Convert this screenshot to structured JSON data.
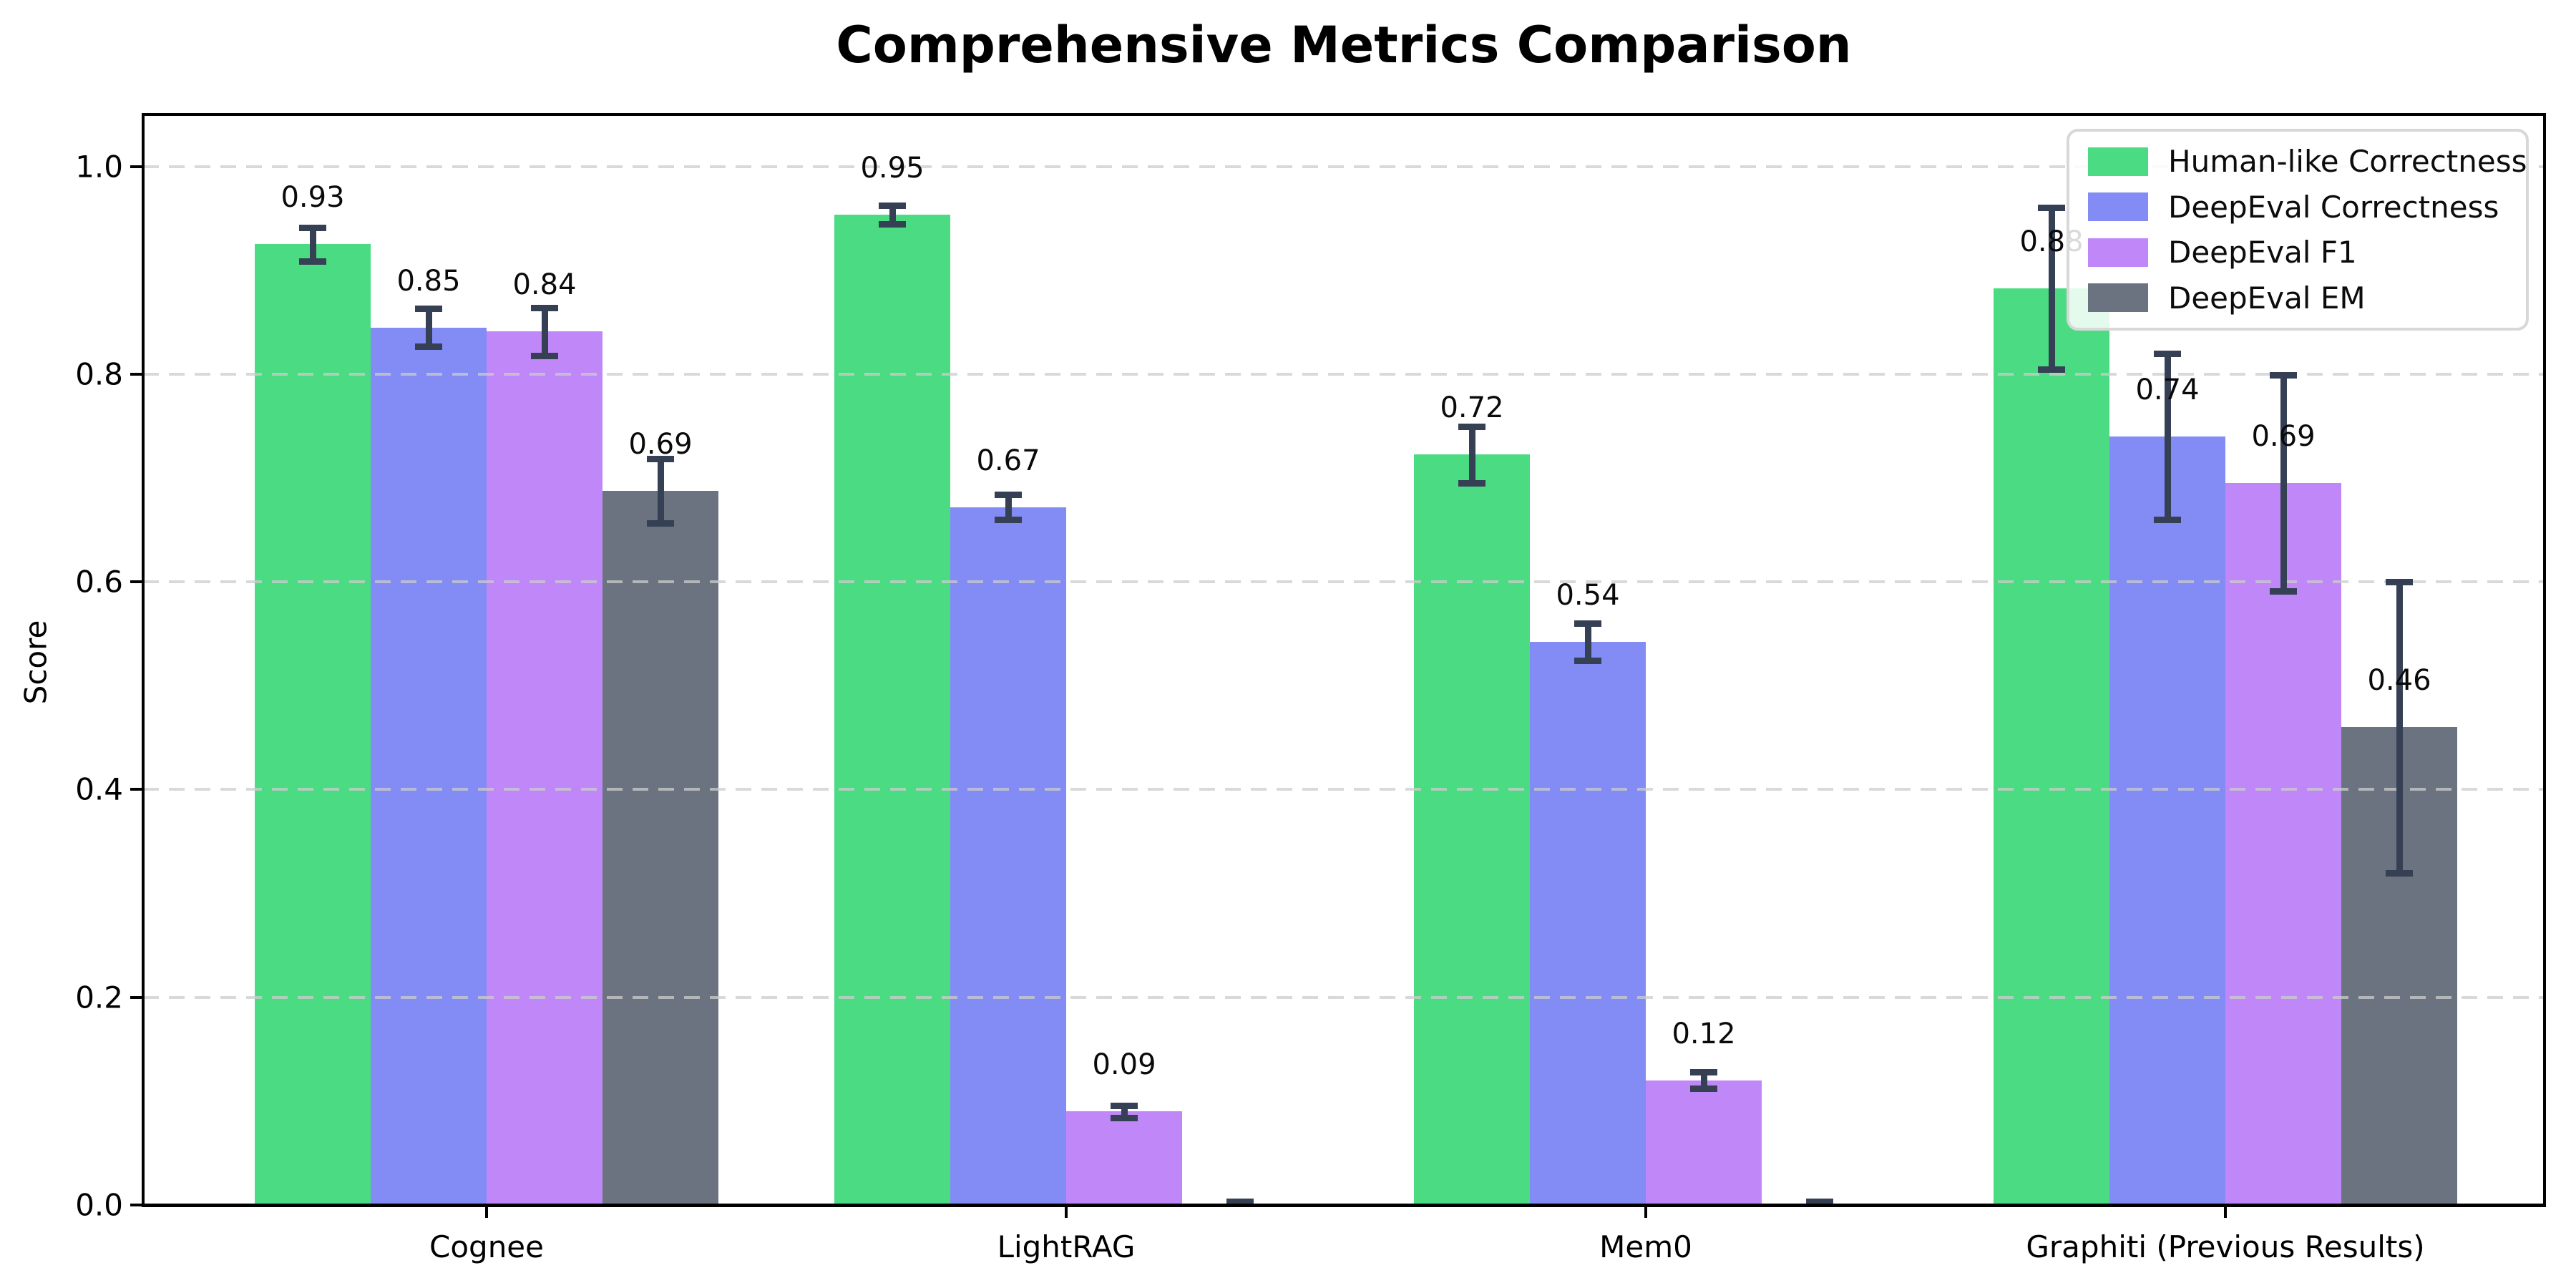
{
  "title": "Comprehensive Metrics Comparison",
  "ylabel": "Score",
  "chart_data": {
    "type": "bar",
    "categories": [
      "Cognee",
      "LightRAG",
      "Mem0",
      "Graphiti (Previous Results)"
    ],
    "series": [
      {
        "name": "Human-like Correctness",
        "color": "#4bdc83",
        "values": [
          0.925,
          0.9535,
          0.7225,
          0.8825
        ],
        "errors": [
          0.016,
          0.009,
          0.027,
          0.078
        ],
        "labels": [
          "0.93",
          "0.95",
          "0.72",
          "0.88"
        ]
      },
      {
        "name": "DeepEval Correctness",
        "color": "#828cf4",
        "values": [
          0.845,
          0.672,
          0.542,
          0.74
        ],
        "errors": [
          0.018,
          0.012,
          0.018,
          0.08
        ],
        "labels": [
          "0.85",
          "0.67",
          "0.54",
          "0.74"
        ]
      },
      {
        "name": "DeepEval F1",
        "color": "#bf87f7",
        "values": [
          0.841,
          0.09,
          0.12,
          0.695
        ],
        "errors": [
          0.023,
          0.006,
          0.008,
          0.104
        ],
        "labels": [
          "0.84",
          "0.09",
          "0.12",
          "0.69"
        ]
      },
      {
        "name": "DeepEval EM",
        "color": "#6b7380",
        "values": [
          0.6875,
          0.0015,
          0.0015,
          0.46
        ],
        "errors": [
          0.031,
          0.002,
          0.002,
          0.14
        ],
        "labels": [
          "0.69",
          "",
          "",
          "0.46"
        ]
      }
    ],
    "yticks": [
      {
        "value": 0.0,
        "label": "0.0"
      },
      {
        "value": 0.2,
        "label": "0.2"
      },
      {
        "value": 0.4,
        "label": "0.4"
      },
      {
        "value": 0.6,
        "label": "0.6"
      },
      {
        "value": 0.8,
        "label": "0.8"
      },
      {
        "value": 1.0,
        "label": "1.0"
      }
    ],
    "ylim": [
      0,
      1.05
    ],
    "grid": true,
    "legend_position": "upper right",
    "error_bar_color": "#354055",
    "grid_color": "#cccccc",
    "axis_color": "#000000"
  }
}
